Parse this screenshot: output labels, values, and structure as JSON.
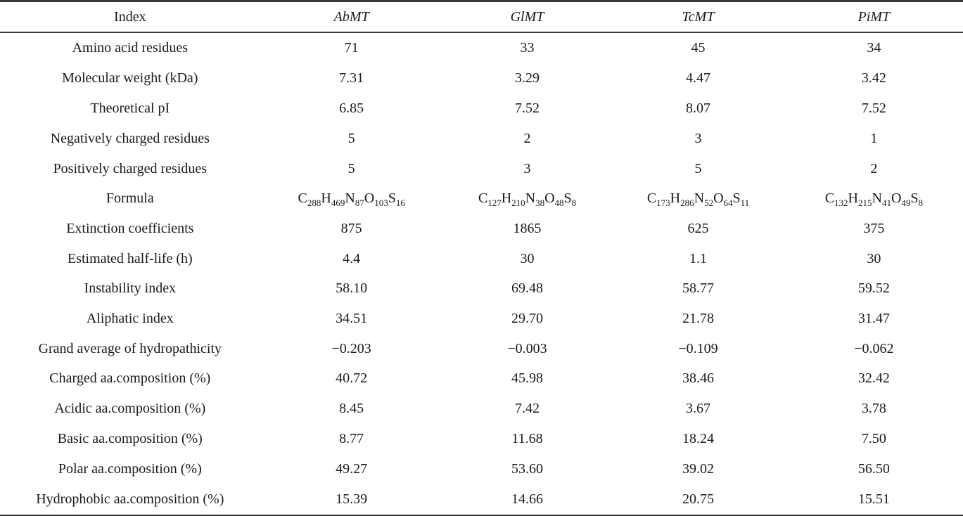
{
  "table": {
    "columns": [
      "Index",
      "AbMT",
      "GlMT",
      "TcMT",
      "PiMT"
    ],
    "rows": [
      {
        "label": "Amino acid residues",
        "cells": [
          "71",
          "33",
          "45",
          "34"
        ]
      },
      {
        "label": "Molecular weight (kDa)",
        "cells": [
          "7.31",
          "3.29",
          "4.47",
          "3.42"
        ]
      },
      {
        "label": "Theoretical pI",
        "cells": [
          "6.85",
          "7.52",
          "8.07",
          "7.52"
        ]
      },
      {
        "label": "Negatively charged residues",
        "cells": [
          "5",
          "2",
          "3",
          "1"
        ]
      },
      {
        "label": "Positively charged residues",
        "cells": [
          "5",
          "3",
          "5",
          "2"
        ]
      },
      {
        "label": "Formula",
        "cells": [
          [
            [
              "C",
              "288"
            ],
            [
              "H",
              "469"
            ],
            [
              "N",
              "87"
            ],
            [
              "O",
              "103"
            ],
            [
              "S",
              "16"
            ]
          ],
          [
            [
              "C",
              "127"
            ],
            [
              "H",
              "210"
            ],
            [
              "N",
              "38"
            ],
            [
              "O",
              "48"
            ],
            [
              "S",
              "8"
            ]
          ],
          [
            [
              "C",
              "173"
            ],
            [
              "H",
              "286"
            ],
            [
              "N",
              "52"
            ],
            [
              "O",
              "64"
            ],
            [
              "S",
              "11"
            ]
          ],
          [
            [
              "C",
              "132"
            ],
            [
              "H",
              "215"
            ],
            [
              "N",
              "41"
            ],
            [
              "O",
              "49"
            ],
            [
              "S",
              "8"
            ]
          ]
        ]
      },
      {
        "label": "Extinction coefficients",
        "cells": [
          "875",
          "1865",
          "625",
          "375"
        ]
      },
      {
        "label": "Estimated half-life (h)",
        "cells": [
          "4.4",
          "30",
          "1.1",
          "30"
        ]
      },
      {
        "label": "Instability index",
        "cells": [
          "58.10",
          "69.48",
          "58.77",
          "59.52"
        ]
      },
      {
        "label": "Aliphatic index",
        "cells": [
          "34.51",
          "29.70",
          "21.78",
          "31.47"
        ]
      },
      {
        "label": "Grand average of hydropathicity",
        "cells": [
          "−0.203",
          "−0.003",
          "−0.109",
          "−0.062"
        ]
      },
      {
        "label": "Charged aa.composition (%)",
        "cells": [
          "40.72",
          "45.98",
          "38.46",
          "32.42"
        ]
      },
      {
        "label": "Acidic aa.composition (%)",
        "cells": [
          "8.45",
          "7.42",
          "3.67",
          "3.78"
        ]
      },
      {
        "label": "Basic aa.composition (%)",
        "cells": [
          "8.77",
          "11.68",
          "18.24",
          "7.50"
        ]
      },
      {
        "label": "Polar aa.composition (%)",
        "cells": [
          "49.27",
          "53.60",
          "39.02",
          "56.50"
        ]
      },
      {
        "label": "Hydrophobic aa.composition (%)",
        "cells": [
          "15.39",
          "14.66",
          "20.75",
          "15.51"
        ]
      }
    ]
  }
}
